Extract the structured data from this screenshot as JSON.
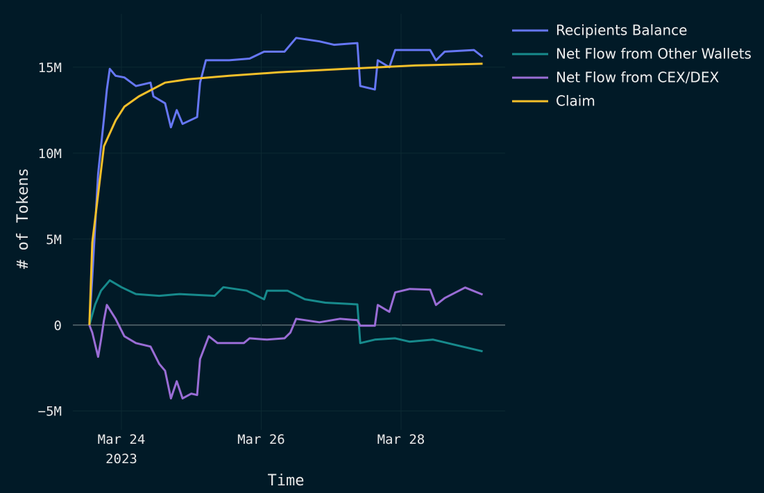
{
  "chart_data": {
    "type": "line",
    "xlabel": "Time",
    "ylabel": "# of Tokens",
    "xlim": [
      "2023-03-23 07:20",
      "2023-03-29 11:45"
    ],
    "xticks": [
      {
        "value": "2023-03-24 00:00",
        "label": "Mar 24\n2023"
      },
      {
        "value": "2023-03-26 00:00",
        "label": "Mar 26"
      },
      {
        "value": "2023-03-28 00:00",
        "label": "Mar 28"
      }
    ],
    "ylim": [
      -6100000,
      18100000
    ],
    "yticks": [
      {
        "value": -5000000,
        "label": "−5M"
      },
      0,
      {
        "value": 5000000,
        "label": "5M"
      },
      {
        "value": 10000000,
        "label": "10M"
      },
      {
        "value": 15000000,
        "label": "15M"
      }
    ],
    "grid": true,
    "legend": "top-right",
    "series": [
      {
        "name": "Recipients Balance",
        "color": "#6677f5",
        "x": [
          "2023-03-23 13:00",
          "2023-03-23 14:00",
          "2023-03-23 16:00",
          "2023-03-23 18:00",
          "2023-03-23 19:00",
          "2023-03-23 20:00",
          "2023-03-23 22:00",
          "2023-03-24 01:00",
          "2023-03-24 05:00",
          "2023-03-24 10:00",
          "2023-03-24 11:00",
          "2023-03-24 15:00",
          "2023-03-24 17:00",
          "2023-03-24 19:00",
          "2023-03-24 21:00",
          "2023-03-25 02:00",
          "2023-03-25 03:00",
          "2023-03-25 05:00",
          "2023-03-25 13:00",
          "2023-03-25 20:00",
          "2023-03-26 01:00",
          "2023-03-26 08:00",
          "2023-03-26 12:00",
          "2023-03-26 20:00",
          "2023-03-27 01:00",
          "2023-03-27 09:00",
          "2023-03-27 10:00",
          "2023-03-27 15:00",
          "2023-03-27 16:00",
          "2023-03-27 20:00",
          "2023-03-27 22:00",
          "2023-03-28 10:00",
          "2023-03-28 12:00",
          "2023-03-28 15:00",
          "2023-03-29 01:00",
          "2023-03-29 04:00"
        ],
        "values": [
          0,
          2800000,
          8800000,
          12000000,
          13700000,
          14900000,
          14500000,
          14400000,
          13900000,
          14100000,
          13300000,
          12900000,
          11500000,
          12500000,
          11700000,
          12100000,
          14100000,
          15400000,
          15400000,
          15500000,
          15900000,
          15900000,
          16700000,
          16500000,
          16300000,
          16400000,
          13900000,
          13700000,
          15400000,
          15000000,
          16000000,
          16000000,
          15400000,
          15900000,
          16000000,
          15600000
        ]
      },
      {
        "name": "Net Flow from Other Wallets",
        "color": "#178a8c",
        "x": [
          "2023-03-23 13:00",
          "2023-03-23 15:00",
          "2023-03-23 17:00",
          "2023-03-23 20:00",
          "2023-03-24 00:00",
          "2023-03-24 05:00",
          "2023-03-24 13:00",
          "2023-03-24 20:00",
          "2023-03-25 08:00",
          "2023-03-25 11:00",
          "2023-03-25 19:00",
          "2023-03-26 01:00",
          "2023-03-26 02:00",
          "2023-03-26 09:00",
          "2023-03-26 15:00",
          "2023-03-26 22:00",
          "2023-03-27 09:00",
          "2023-03-27 10:00",
          "2023-03-27 15:00",
          "2023-03-27 22:00",
          "2023-03-28 03:00",
          "2023-03-28 11:00",
          "2023-03-28 18:00",
          "2023-03-29 04:00"
        ],
        "values": [
          0,
          1200000,
          2000000,
          2600000,
          2200000,
          1800000,
          1700000,
          1800000,
          1700000,
          2200000,
          2000000,
          1500000,
          2000000,
          2000000,
          1500000,
          1300000,
          1200000,
          -1050000,
          -850000,
          -770000,
          -970000,
          -850000,
          -1130000,
          -1530000
        ]
      },
      {
        "name": "Net Flow from CEX/DEX",
        "color": "#9a6dd6",
        "x": [
          "2023-03-23 13:00",
          "2023-03-23 14:00",
          "2023-03-23 16:00",
          "2023-03-23 17:00",
          "2023-03-23 18:00",
          "2023-03-23 19:00",
          "2023-03-23 22:00",
          "2023-03-24 01:00",
          "2023-03-24 05:00",
          "2023-03-24 10:00",
          "2023-03-24 13:00",
          "2023-03-24 15:00",
          "2023-03-24 17:00",
          "2023-03-24 19:00",
          "2023-03-24 21:00",
          "2023-03-25 00:00",
          "2023-03-25 02:00",
          "2023-03-25 03:00",
          "2023-03-25 06:00",
          "2023-03-25 09:00",
          "2023-03-25 18:00",
          "2023-03-25 20:00",
          "2023-03-26 02:00",
          "2023-03-26 08:00",
          "2023-03-26 10:00",
          "2023-03-26 12:00",
          "2023-03-26 20:00",
          "2023-03-27 03:00",
          "2023-03-27 09:00",
          "2023-03-27 10:00",
          "2023-03-27 15:00",
          "2023-03-27 16:00",
          "2023-03-27 20:00",
          "2023-03-27 22:00",
          "2023-03-28 03:00",
          "2023-03-28 10:00",
          "2023-03-28 12:00",
          "2023-03-28 15:00",
          "2023-03-28 22:00",
          "2023-03-29 04:00"
        ],
        "values": [
          0,
          -440000,
          -1850000,
          -850000,
          280000,
          1170000,
          360000,
          -650000,
          -1050000,
          -1250000,
          -2260000,
          -2660000,
          -4270000,
          -3270000,
          -4270000,
          -3990000,
          -4070000,
          -1980000,
          -650000,
          -1050000,
          -1050000,
          -770000,
          -850000,
          -770000,
          -440000,
          360000,
          160000,
          360000,
          280000,
          -40000,
          -40000,
          1170000,
          770000,
          1900000,
          2100000,
          2060000,
          1170000,
          1570000,
          2180000,
          1770000
        ]
      },
      {
        "name": "Claim",
        "color": "#f5c02a",
        "x": [
          "2023-03-23 13:00",
          "2023-03-23 14:00",
          "2023-03-23 16:00",
          "2023-03-23 18:00",
          "2023-03-23 22:00",
          "2023-03-24 01:00",
          "2023-03-24 06:00",
          "2023-03-24 15:00",
          "2023-03-24 23:00",
          "2023-03-25 13:00",
          "2023-03-26 06:00",
          "2023-03-27 05:00",
          "2023-03-28 05:00",
          "2023-03-29 04:00"
        ],
        "values": [
          0,
          4800000,
          7600000,
          10400000,
          11900000,
          12700000,
          13300000,
          14100000,
          14300000,
          14500000,
          14700000,
          14900000,
          15100000,
          15200000
        ]
      }
    ]
  }
}
